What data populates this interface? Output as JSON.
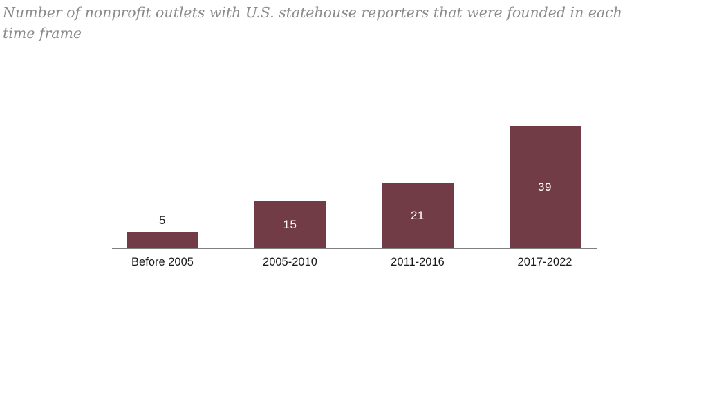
{
  "title_lines": [
    "Number of nonprofit outlets with U.S. statehouse reporters that were founded in each",
    "time frame"
  ],
  "colors": {
    "bar": "#713c46",
    "value_inside": "#ffffff",
    "value_outside": "#1a1a1a",
    "axis_line": "#7f7f7f",
    "title": "#8b8b8b",
    "category": "#1a1a1a",
    "background": "#ffffff"
  },
  "chart_data": {
    "type": "bar",
    "title": "Number of nonprofit outlets with U.S. statehouse reporters that were founded in each time frame",
    "categories": [
      "Before 2005",
      "2005-2010",
      "2011-2016",
      "2017-2022"
    ],
    "values": [
      5,
      15,
      21,
      39
    ],
    "value_labels": [
      "5",
      "15",
      "21",
      "39"
    ],
    "xlabel": "",
    "ylabel": "",
    "ylim": [
      0,
      40
    ],
    "grid": false,
    "legend": false,
    "y_axis_shown": false,
    "value_label_placement": [
      "above-bar",
      "inside-center",
      "inside-center",
      "inside-center"
    ]
  }
}
